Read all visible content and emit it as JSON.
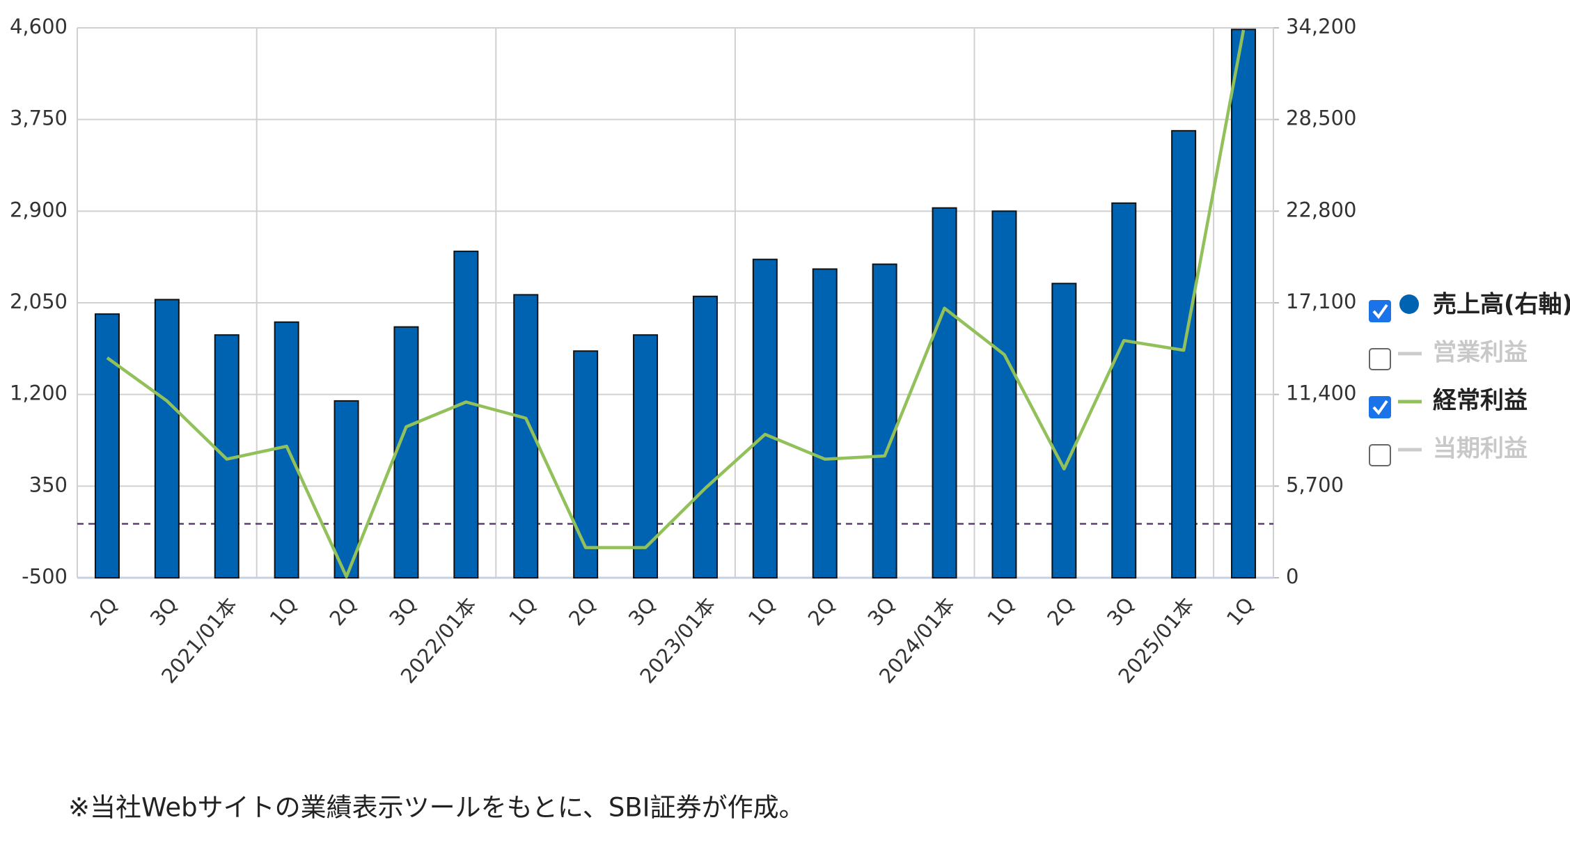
{
  "chart_data": {
    "type": "bar_line",
    "categories": [
      "2Q",
      "3Q",
      "2021/01本",
      "1Q",
      "2Q",
      "3Q",
      "2022/01本",
      "1Q",
      "2Q",
      "3Q",
      "2023/01本",
      "1Q",
      "2Q",
      "3Q",
      "2024/01本",
      "1Q",
      "2Q",
      "3Q",
      "2025/01本",
      "1Q"
    ],
    "series": [
      {
        "name": "売上高(右軸)",
        "type": "bar",
        "axis": "y2",
        "color": "#0063b1",
        "checked": true,
        "values": [
          16400,
          17300,
          15100,
          15900,
          11000,
          15600,
          20300,
          17600,
          14100,
          15100,
          17500,
          19800,
          19200,
          19500,
          23000,
          22800,
          18300,
          23300,
          27800,
          34100
        ]
      },
      {
        "name": "営業利益",
        "type": "line",
        "color": "#cccccc",
        "checked": false
      },
      {
        "name": "経常利益",
        "type": "line",
        "axis": "y",
        "color": "#92c05a",
        "checked": true,
        "values": [
          1540,
          1140,
          600,
          720,
          -490,
          900,
          1130,
          980,
          -220,
          -220,
          330,
          830,
          600,
          630,
          2000,
          1570,
          510,
          1700,
          1610,
          4580
        ]
      },
      {
        "name": "当期利益",
        "type": "line",
        "color": "#cccccc",
        "checked": false
      }
    ],
    "ylim": [
      -500,
      4600
    ],
    "yticks": [
      -500,
      350,
      {
        "value": 1200,
        "label": "1,200"
      },
      {
        "value": 2050,
        "label": "2,050"
      },
      {
        "value": 2900,
        "label": "2,900"
      },
      {
        "value": 3750,
        "label": "3,750"
      },
      {
        "value": 4600,
        "label": "4,600"
      }
    ],
    "y2lim": [
      0,
      34200
    ],
    "y2ticks": [
      0,
      {
        "value": 5700,
        "label": "5,700"
      },
      {
        "value": 11400,
        "label": "11,400"
      },
      {
        "value": 17100,
        "label": "17,100"
      },
      {
        "value": 22800,
        "label": "22,800"
      },
      {
        "value": 28500,
        "label": "28,500"
      },
      {
        "value": 34200,
        "label": "34,200"
      }
    ],
    "grid": true,
    "legend": "right",
    "note": "※当社Webサイトの業績表示ツールをもとに、SBI証券が作成。"
  }
}
